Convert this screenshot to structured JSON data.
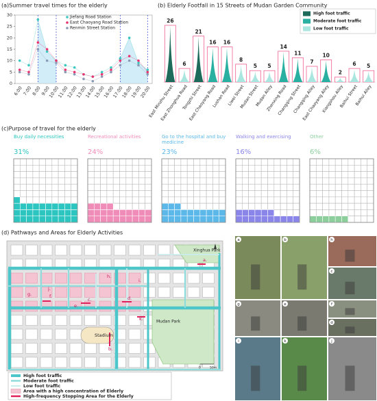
{
  "chart_data": [
    {
      "type": "line",
      "title": "(a)Summer travel times for the elderly",
      "x": [
        "6:00",
        "7:00",
        "8:00",
        "9:00",
        "10:00",
        "11:00",
        "12:00",
        "13:00",
        "14:00",
        "15:00",
        "16:00",
        "17:00",
        "18:00",
        "19:00",
        "20:00"
      ],
      "series": [
        {
          "name": "Jiefang Road Station",
          "color": "#3cc8c0",
          "values": [
            10,
            8,
            28,
            14,
            10,
            8,
            7,
            4,
            3,
            5,
            7,
            11,
            20,
            9,
            6
          ]
        },
        {
          "name": "East Chaoyang Road Station",
          "color": "#e8336e",
          "values": [
            6,
            5,
            18,
            15,
            10,
            6,
            5,
            4,
            3,
            4,
            6,
            10,
            12,
            10,
            5
          ]
        },
        {
          "name": "Renmin Street Station",
          "color": "#8a9ab5",
          "values": [
            5,
            4,
            15,
            10,
            9,
            5,
            4,
            2,
            1,
            3,
            5,
            8,
            10,
            8,
            4
          ]
        }
      ],
      "ylim": [
        0,
        30
      ],
      "yticks": [
        0,
        5,
        10,
        15,
        20,
        25,
        30
      ],
      "grid": false
    },
    {
      "type": "spike",
      "title": "(b) Elderly Footfall in 15 Streets of Mudan Garden Community",
      "categories": [
        "East Minzhu Street",
        "East Zhonghua Road",
        "Tongzhi Street",
        "East Chaoyang Road",
        "Lushan Road",
        "Liwei Street",
        "Mudan Street",
        "Mudan Alley",
        "Zhenxing Road",
        "Changqing Street",
        "Changqing Alley",
        "East Chaoyang Alley",
        "Xiangshou Alley",
        "Baihui Street",
        "Baihui Alley"
      ],
      "series": [
        {
          "name": "High foot traffic",
          "color": "#1e6b5c",
          "values": [
            26,
            null,
            21,
            null,
            null,
            null,
            null,
            null,
            null,
            null,
            null,
            null,
            null,
            null,
            null
          ]
        },
        {
          "name": "Moderate foot traffic",
          "color": "#2ab0a0",
          "values": [
            null,
            null,
            null,
            16,
            16,
            null,
            null,
            null,
            14,
            11,
            null,
            10,
            null,
            null,
            null
          ]
        },
        {
          "name": "Low foot traffic",
          "color": "#a8e6df",
          "values": [
            null,
            6,
            null,
            null,
            null,
            8,
            5,
            5,
            null,
            null,
            7,
            null,
            2,
            6,
            5
          ]
        }
      ],
      "legend": "top-right"
    },
    {
      "type": "waffle",
      "title": "(c)Purpose of travel for the elderly",
      "categories": [
        "Buy daily necessities",
        "Recreational activities",
        "Go to the hospital and buy medicine",
        "Walking and exercising",
        "Other"
      ],
      "values": [
        31,
        24,
        23,
        16,
        6
      ],
      "value_labels": [
        "31%",
        "24%",
        "23%",
        "16%",
        "6%"
      ],
      "colors": [
        "#2cc5c0",
        "#f08cb8",
        "#5bb8e8",
        "#8a85e8",
        "#8ccf9c"
      ]
    }
  ],
  "map": {
    "title": "(d) Pathways and Areas for Elderly Activities",
    "places": [
      "Xinghua Park",
      "Mudan Park",
      "Stadium"
    ],
    "markers": [
      "a.",
      "b.",
      "c.",
      "d.",
      "e.",
      "f.",
      "g.",
      "h.",
      "i.",
      "j.",
      "k."
    ],
    "scale_labels": [
      "0",
      "50m"
    ],
    "legend": [
      "High foot traffic",
      "Moderate foot traffic",
      "Low foot traffic",
      "Area with a high concentration of Elderly",
      "High-frequency Stopping Area for the Elderly"
    ]
  },
  "photos": {
    "labels": [
      "a",
      "b",
      "h",
      "c",
      "g",
      "e",
      "f",
      "d",
      "i",
      "k",
      "j"
    ]
  }
}
